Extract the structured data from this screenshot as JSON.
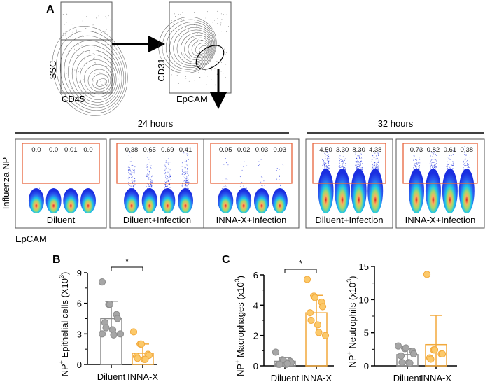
{
  "panel_A": {
    "label": "A",
    "gating": {
      "plot1": {
        "x_label": "CD45",
        "y_label": "SSC"
      },
      "plot2": {
        "x_label": "EpCAM",
        "y_label": "CD31"
      }
    },
    "y_axis_label": "Influenza NP",
    "x_axis_label": "EpCAM",
    "timepoints": [
      {
        "label": "24 hours",
        "panels": [
          {
            "condition": "Diluent",
            "gate_values": [
              "0.0",
              "0.0",
              "0.01",
              "0.0"
            ],
            "infected": 0
          },
          {
            "condition": "Diluent+Infection",
            "gate_values": [
              "0.38",
              "0.65",
              "0.69",
              "0.41"
            ],
            "infected": 2
          },
          {
            "condition": "INNA-X+Infection",
            "gate_values": [
              "0.05",
              "0.02",
              "0.03",
              "0.03"
            ],
            "infected": 1
          }
        ]
      },
      {
        "label": "32 hours",
        "panels": [
          {
            "condition": "Diluent+Infection",
            "gate_values": [
              "4.50",
              "3.30",
              "8.30",
              "4.38"
            ],
            "infected": 3
          },
          {
            "condition": "INNA-X+Infection",
            "gate_values": [
              "0.73",
              "0.82",
              "0.61",
              "0.38"
            ],
            "infected": 2
          }
        ]
      }
    ]
  },
  "colors": {
    "diluent": "#8c8c8c",
    "diluent_fill": "#a6a6a6",
    "innax": "#f2a93b",
    "innax_fill": "#fcc96a",
    "gate": "#e8643c"
  },
  "chart_data": [
    {
      "panel": "B",
      "type": "bar",
      "ylabel_main": "NP",
      "ylabel_sup": "+",
      "ylabel_rest": " Epithelial cells (X10",
      "ylabel_exp": "3",
      "ylabel_end": ")",
      "categories": [
        "Diluent",
        "INNA-X"
      ],
      "ylim": [
        0,
        9
      ],
      "yticks": [
        0,
        3,
        6,
        9
      ],
      "means": [
        4.5,
        1.1
      ],
      "sd": [
        1.7,
        0.9
      ],
      "points": [
        [
          8.1,
          5.9,
          5.9,
          4.9,
          4.5,
          4.1,
          3.6,
          3.4,
          2.9,
          3.0,
          3.0
        ],
        [
          3.2,
          2.0,
          2.0,
          1.0,
          0.9,
          0.8,
          0.6,
          0.5,
          0.5
        ]
      ],
      "significance": "*"
    },
    {
      "panel": "C",
      "type": "bar",
      "ylabel_main": "NP",
      "ylabel_sup": "+",
      "ylabel_rest": " Macrophages (x10",
      "ylabel_exp": "3",
      "ylabel_end": ")",
      "categories": [
        "Diluent",
        "INNA-X"
      ],
      "ylim": [
        0,
        6
      ],
      "yticks": [
        0,
        2,
        4,
        6
      ],
      "means": [
        0.3,
        3.5
      ],
      "sd": [
        0.25,
        1.15
      ],
      "points": [
        [
          0.9,
          0.4,
          0.35,
          0.3,
          0.2,
          0.1,
          0.1,
          0.1,
          0.15
        ],
        [
          5.7,
          4.6,
          4.5,
          4.2,
          3.9,
          3.5,
          3.0,
          2.7,
          2.2,
          2.0
        ]
      ],
      "significance": "*"
    },
    {
      "panel": "",
      "type": "bar",
      "ylabel_main": "NP",
      "ylabel_sup": "+",
      "ylabel_rest": " Neutrophils (x10",
      "ylabel_exp": "3",
      "ylabel_end": ")",
      "categories": [
        "Diluent",
        "INNA-X"
      ],
      "ylim": [
        0,
        15
      ],
      "yticks": [
        0,
        5,
        10,
        15
      ],
      "means": [
        1.7,
        3.2
      ],
      "sd": [
        0.9,
        4.4
      ],
      "points": [
        [
          3.0,
          2.6,
          2.7,
          2.2,
          1.8,
          1.5,
          0.5,
          0.5,
          0.4
        ],
        [
          13.8,
          2.4,
          2.4,
          1.8,
          1.8,
          1.2,
          1.0
        ]
      ],
      "significance": ""
    }
  ]
}
